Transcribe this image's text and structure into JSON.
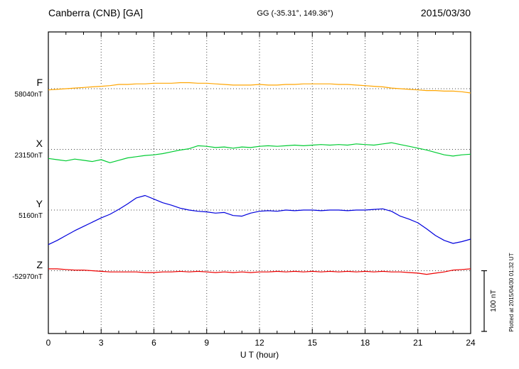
{
  "header": {
    "station": "Canberra (CNB) [GA]",
    "coords": "GG (-35.31°, 149.36°)",
    "date": "2015/03/30"
  },
  "right_panel": {
    "scale_label": "100 nT",
    "plotted_at": "Plotted at 2015/04/30 01:32 UT"
  },
  "chart_data": {
    "type": "line",
    "title": "Canberra (CNB) [GA] magnetogram 2015/03/30",
    "xlabel": "U T (hour)",
    "ylabel": "",
    "x_range": [
      0,
      24
    ],
    "x_ticks": [
      0,
      3,
      6,
      9,
      12,
      15,
      18,
      21,
      24
    ],
    "x_step_hours": 0.5,
    "grid": "dotted",
    "scale_bar_nT": 100,
    "series": [
      {
        "name": "F",
        "base_label": "58040nT",
        "base_value": 58040,
        "color": "#ffa500",
        "values": [
          58038,
          58039,
          58040,
          58041,
          58042,
          58043,
          58044,
          58045,
          58047,
          58047,
          58048,
          58048,
          58049,
          58049,
          58049,
          58050,
          58050,
          58049,
          58049,
          58048,
          58047,
          58046,
          58046,
          58046,
          58047,
          58046,
          58046,
          58047,
          58047,
          58048,
          58048,
          58048,
          58048,
          58047,
          58047,
          58046,
          58045,
          58044,
          58043,
          58041,
          58040,
          58039,
          58038,
          58037,
          58037,
          58036,
          58036,
          58035,
          58033
        ]
      },
      {
        "name": "X",
        "base_label": "23150nT",
        "base_value": 23150,
        "color": "#00cc33",
        "values": [
          23135,
          23133,
          23131,
          23134,
          23132,
          23130,
          23133,
          23128,
          23132,
          23136,
          23138,
          23140,
          23141,
          23143,
          23146,
          23149,
          23151,
          23156,
          23155,
          23153,
          23154,
          23152,
          23154,
          23153,
          23155,
          23156,
          23155,
          23156,
          23157,
          23156,
          23157,
          23158,
          23157,
          23158,
          23157,
          23159,
          23158,
          23157,
          23159,
          23161,
          23158,
          23155,
          23152,
          23149,
          23145,
          23141,
          23139,
          23141,
          23142
        ]
      },
      {
        "name": "Y",
        "base_label": "5160nT",
        "base_value": 5160,
        "color": "#0000dd",
        "values": [
          5103,
          5110,
          5118,
          5126,
          5133,
          5140,
          5147,
          5153,
          5161,
          5170,
          5180,
          5184,
          5178,
          5172,
          5168,
          5163,
          5160,
          5158,
          5157,
          5155,
          5156,
          5151,
          5150,
          5155,
          5158,
          5159,
          5158,
          5160,
          5159,
          5160,
          5160,
          5159,
          5160,
          5160,
          5159,
          5160,
          5160,
          5161,
          5162,
          5158,
          5150,
          5145,
          5139,
          5129,
          5118,
          5110,
          5105,
          5108,
          5112
        ]
      },
      {
        "name": "Z",
        "base_label": "-52970nT",
        "base_value": -52970,
        "color": "#ee0000",
        "values": [
          -52967,
          -52967,
          -52968,
          -52969,
          -52969,
          -52970,
          -52971,
          -52972,
          -52972,
          -52972,
          -52972,
          -52973,
          -52973,
          -52972,
          -52972,
          -52971,
          -52972,
          -52971,
          -52972,
          -52973,
          -52972,
          -52973,
          -52972,
          -52973,
          -52972,
          -52972,
          -52971,
          -52972,
          -52971,
          -52972,
          -52971,
          -52972,
          -52971,
          -52972,
          -52971,
          -52972,
          -52971,
          -52972,
          -52971,
          -52972,
          -52972,
          -52973,
          -52974,
          -52976,
          -52974,
          -52972,
          -52969,
          -52968,
          -52967
        ]
      }
    ]
  }
}
